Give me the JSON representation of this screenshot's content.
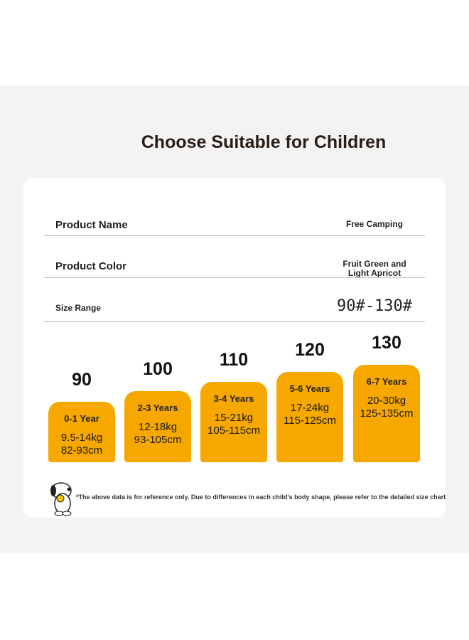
{
  "title": "Choose Suitable for Children",
  "info": [
    {
      "label": "Product Name",
      "value": [
        "Free Camping"
      ]
    },
    {
      "label": "Product Color",
      "value": [
        "Fruit Green and",
        "Light Apricot"
      ]
    },
    {
      "label": "Size Range",
      "value": [
        "90#-130#"
      ]
    }
  ],
  "sizes": [
    {
      "size": "90",
      "age": "0-1 Year",
      "weight": "9.5-14kg",
      "height": "82-93cm"
    },
    {
      "size": "100",
      "age": "2-3 Years",
      "weight": "12-18kg",
      "height": "93-105cm"
    },
    {
      "size": "110",
      "age": "3-4 Years",
      "weight": "15-21kg",
      "height": "105-115cm"
    },
    {
      "size": "120",
      "age": "5-6 Years",
      "weight": "17-24kg",
      "height": "115-125cm"
    },
    {
      "size": "130",
      "age": "6-7 Years",
      "weight": "20-30kg",
      "height": "125-135cm"
    }
  ],
  "footnote": "*The above data is for reference only. Due to differences in each child's body shape, please refer to the detailed size chart"
}
